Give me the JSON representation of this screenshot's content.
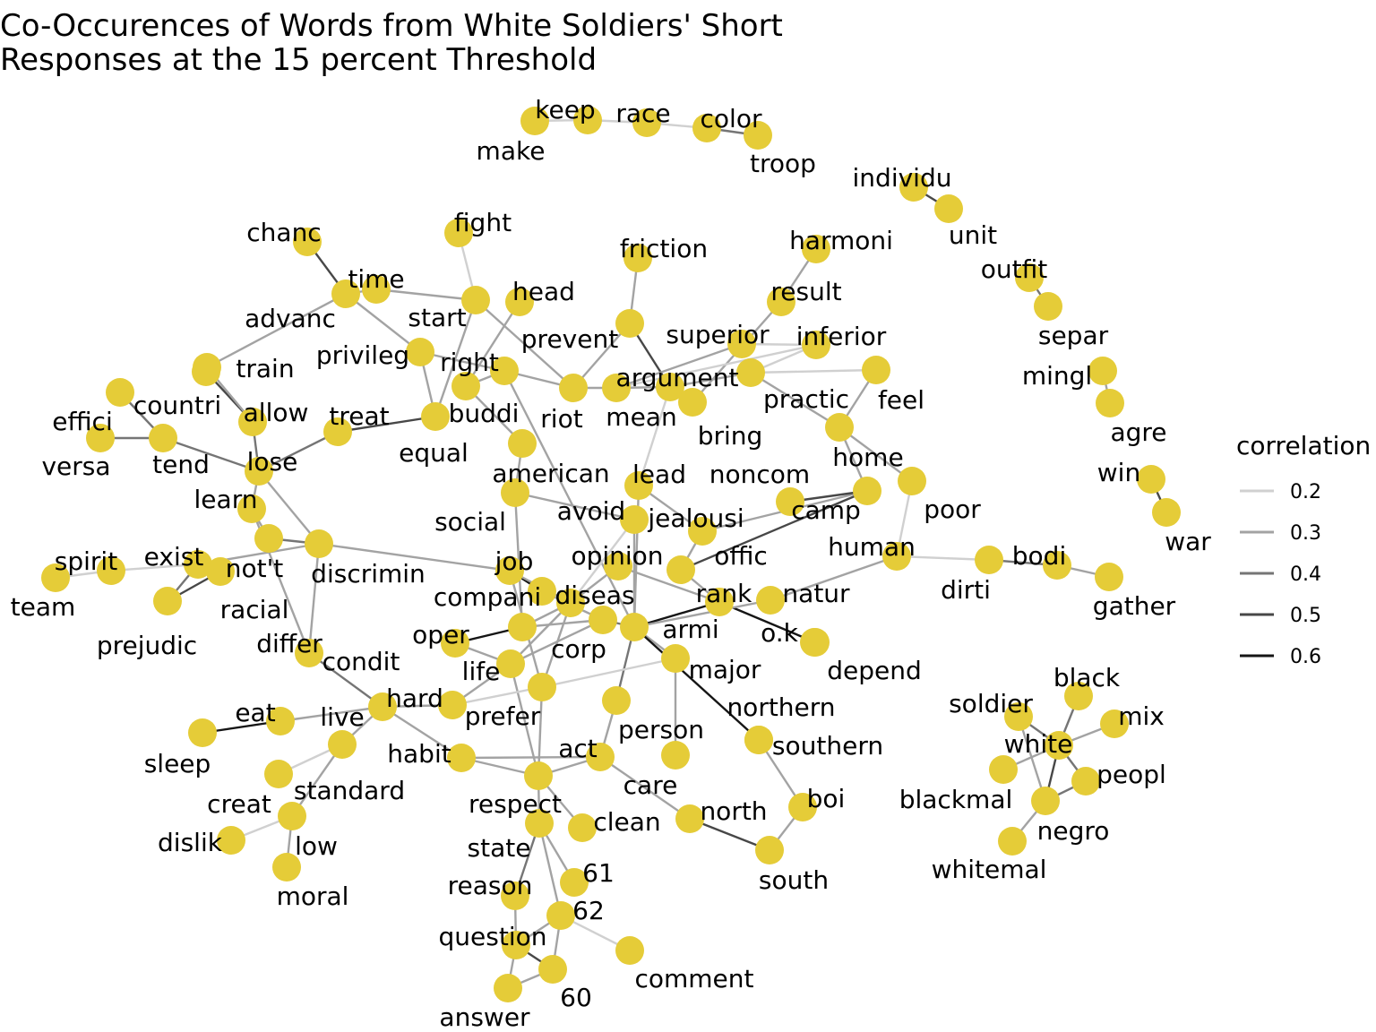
{
  "title": {
    "line1": "Co-Occurences of Words from White Soldiers' Short",
    "line2": "Responses at the 15 percent Threshold"
  },
  "colors": {
    "node": "#E5CC38",
    "text": "#000000",
    "background": "#ffffff"
  },
  "legend": {
    "title": "correlation",
    "items": [
      {
        "label": "0.2",
        "value": 0.2,
        "color": "#d0d0d0"
      },
      {
        "label": "0.3",
        "value": 0.3,
        "color": "#a3a3a3"
      },
      {
        "label": "0.4",
        "value": 0.4,
        "color": "#757575"
      },
      {
        "label": "0.5",
        "value": 0.5,
        "color": "#474747"
      },
      {
        "label": "0.6",
        "value": 0.6,
        "color": "#151515"
      }
    ]
  },
  "nodes": [
    "make",
    "keep",
    "race",
    "color",
    "troop",
    "individu",
    "unit",
    "outfit",
    "separ",
    "mingl",
    "agre",
    "win",
    "war",
    "chanc",
    "time",
    "advanc",
    "fight",
    "start",
    "head",
    "friction",
    "prevent",
    "harmoni",
    "result",
    "superior",
    "inferior",
    "feel",
    "privileg",
    "right",
    "argument",
    "practic",
    "train",
    "countri",
    "effici",
    "versa",
    "tend",
    "allow",
    "treat",
    "buddi",
    "riot",
    "mean",
    "bring",
    "equal",
    "lose",
    "american",
    "lead",
    "home",
    "noncom",
    "learn",
    "avoid",
    "jealousi",
    "camp",
    "poor",
    "social",
    "not't",
    "discrimin",
    "exist",
    "spirit",
    "team",
    "prejudic",
    "racial",
    "job",
    "opinion",
    "offic",
    "human",
    "bodi",
    "dirti",
    "gather",
    "compani",
    "diseas",
    "rank",
    "natur",
    "oper",
    "corp",
    "armi",
    "o.k",
    "depend",
    "differ",
    "condit",
    "life",
    "major",
    "northern",
    "hard",
    "prefer",
    "eat",
    "live",
    "person",
    "southern",
    "sleep",
    "habit",
    "standard",
    "act",
    "care",
    "creat",
    "respect",
    "boi",
    "north",
    "dislik",
    "low",
    "clean",
    "state",
    "south",
    "moral",
    "61",
    "reason",
    "62",
    "question",
    "comment",
    "60",
    "answer",
    "soldier",
    "black",
    "white",
    "mix",
    "blackmal",
    "peopl",
    "negro",
    "whitemal"
  ],
  "edges": [
    [
      "make",
      "keep",
      0.2
    ],
    [
      "keep",
      "race",
      0.2
    ],
    [
      "race",
      "color",
      0.2
    ],
    [
      "color",
      "troop",
      0.4
    ],
    [
      "individu",
      "unit",
      0.5
    ],
    [
      "outfit",
      "separ",
      0.4
    ],
    [
      "mingl",
      "agre",
      0.3
    ],
    [
      "win",
      "war",
      0.5
    ],
    [
      "chanc",
      "advanc",
      0.5
    ],
    [
      "time",
      "advanc",
      0.3
    ],
    [
      "time",
      "start",
      0.3
    ],
    [
      "fight",
      "start",
      0.2
    ],
    [
      "advanc",
      "privileg",
      0.3
    ],
    [
      "advanc",
      "train",
      0.3
    ],
    [
      "start",
      "riot",
      0.3
    ],
    [
      "start",
      "equal",
      0.3
    ],
    [
      "head",
      "buddi",
      0.3
    ],
    [
      "friction",
      "prevent",
      0.3
    ],
    [
      "prevent",
      "argument",
      0.5
    ],
    [
      "prevent",
      "riot",
      0.3
    ],
    [
      "harmoni",
      "result",
      0.3
    ],
    [
      "result",
      "bring",
      0.3
    ],
    [
      "superior",
      "inferior",
      0.2
    ],
    [
      "superior",
      "mean",
      0.3
    ],
    [
      "inferior",
      "mean",
      0.2
    ],
    [
      "feel",
      "practic",
      0.2
    ],
    [
      "feel",
      "home",
      0.3
    ],
    [
      "privileg",
      "right",
      0.3
    ],
    [
      "privileg",
      "equal",
      0.3
    ],
    [
      "right",
      "buddi",
      0.3
    ],
    [
      "right",
      "riot",
      0.3
    ],
    [
      "riot",
      "mean",
      0.3
    ],
    [
      "mean",
      "argument",
      0.3
    ],
    [
      "argument",
      "practic",
      0.3
    ],
    [
      "argument",
      "lead",
      0.2
    ],
    [
      "argument",
      "bring",
      0.3
    ],
    [
      "practic",
      "inferior",
      0.2
    ],
    [
      "practic",
      "home",
      0.3
    ],
    [
      "right",
      "armi",
      0.3
    ],
    [
      "countri",
      "allow",
      0.5
    ],
    [
      "effici",
      "tend",
      0.4
    ],
    [
      "versa",
      "tend",
      0.4
    ],
    [
      "tend",
      "lose",
      0.4
    ],
    [
      "train",
      "allow",
      0.3
    ],
    [
      "allow",
      "lose",
      0.4
    ],
    [
      "treat",
      "equal",
      0.5
    ],
    [
      "treat",
      "lose",
      0.4
    ],
    [
      "buddi",
      "american",
      0.3
    ],
    [
      "american",
      "social",
      0.3
    ],
    [
      "lose",
      "learn",
      0.3
    ],
    [
      "lose",
      "discrimin",
      0.3
    ],
    [
      "learn",
      "not't",
      0.3
    ],
    [
      "learn",
      "differ",
      0.3
    ],
    [
      "not't",
      "discrimin",
      0.4
    ],
    [
      "exist",
      "racial",
      0.3
    ],
    [
      "exist",
      "discrimin",
      0.3
    ],
    [
      "spirit",
      "exist",
      0.2
    ],
    [
      "spirit",
      "team",
      0.2
    ],
    [
      "prejudic",
      "racial",
      0.5
    ],
    [
      "exist",
      "prejudic",
      0.4
    ],
    [
      "discrimin",
      "job",
      0.3
    ],
    [
      "social",
      "oper",
      0.3
    ],
    [
      "social",
      "avoid",
      0.3
    ],
    [
      "job",
      "diseas",
      0.6
    ],
    [
      "job",
      "compani",
      0.3
    ],
    [
      "job",
      "prefer",
      0.3
    ],
    [
      "avoid",
      "compani",
      0.2
    ],
    [
      "avoid",
      "armi",
      0.3
    ],
    [
      "lead",
      "jealousi",
      0.3
    ],
    [
      "lead",
      "armi",
      0.3
    ],
    [
      "jealousi",
      "camp",
      0.3
    ],
    [
      "noncom",
      "camp",
      0.5
    ],
    [
      "camp",
      "offic",
      0.5
    ],
    [
      "camp",
      "home",
      0.3
    ],
    [
      "home",
      "poor",
      0.3
    ],
    [
      "poor",
      "human",
      0.2
    ],
    [
      "human",
      "natur",
      0.3
    ],
    [
      "human",
      "dirti",
      0.2
    ],
    [
      "dirti",
      "bodi",
      0.4
    ],
    [
      "bodi",
      "gather",
      0.3
    ],
    [
      "opinion",
      "compani",
      0.3
    ],
    [
      "opinion",
      "rank",
      0.3
    ],
    [
      "offic",
      "jealousi",
      0.3
    ],
    [
      "offic",
      "rank",
      0.3
    ],
    [
      "compani",
      "oper",
      0.3
    ],
    [
      "compani",
      "life",
      0.3
    ],
    [
      "compani",
      "prefer",
      0.3
    ],
    [
      "diseas",
      "corp",
      0.3
    ],
    [
      "oper",
      "corp",
      0.3
    ],
    [
      "oper",
      "condit",
      0.6
    ],
    [
      "corp",
      "life",
      0.3
    ],
    [
      "corp",
      "armi",
      0.4
    ],
    [
      "armi",
      "rank",
      0.6
    ],
    [
      "rank",
      "o.k",
      0.6
    ],
    [
      "o.k",
      "depend",
      0.3
    ],
    [
      "armi",
      "natur",
      0.3
    ],
    [
      "armi",
      "major",
      0.3
    ],
    [
      "armi",
      "northern",
      0.6
    ],
    [
      "northern",
      "southern",
      0.4
    ],
    [
      "armi",
      "person",
      0.4
    ],
    [
      "major",
      "care",
      0.3
    ],
    [
      "differ",
      "live",
      0.4
    ],
    [
      "differ",
      "discrimin",
      0.3
    ],
    [
      "condit",
      "life",
      0.3
    ],
    [
      "life",
      "hard",
      0.3
    ],
    [
      "life",
      "respect",
      0.3
    ],
    [
      "hard",
      "prefer",
      0.2
    ],
    [
      "hard",
      "live",
      0.3
    ],
    [
      "eat",
      "sleep",
      0.6
    ],
    [
      "eat",
      "live",
      0.3
    ],
    [
      "live",
      "standard",
      0.3
    ],
    [
      "live",
      "habit",
      0.3
    ],
    [
      "standard",
      "creat",
      0.2
    ],
    [
      "standard",
      "low",
      0.3
    ],
    [
      "habit",
      "act",
      0.3
    ],
    [
      "habit",
      "respect",
      0.3
    ],
    [
      "act",
      "person",
      0.3
    ],
    [
      "act",
      "respect",
      0.3
    ],
    [
      "act",
      "north",
      0.3
    ],
    [
      "prefer",
      "major",
      0.2
    ],
    [
      "respect",
      "state",
      0.3
    ],
    [
      "respect",
      "prefer",
      0.3
    ],
    [
      "respect",
      "clean",
      0.3
    ],
    [
      "north",
      "south",
      0.5
    ],
    [
      "south",
      "boi",
      0.3
    ],
    [
      "boi",
      "southern",
      0.3
    ],
    [
      "dislik",
      "low",
      0.2
    ],
    [
      "low",
      "moral",
      0.3
    ],
    [
      "state",
      "reason",
      0.4
    ],
    [
      "state",
      "61",
      0.3
    ],
    [
      "state",
      "62",
      0.3
    ],
    [
      "62",
      "question",
      0.3
    ],
    [
      "62",
      "comment",
      0.2
    ],
    [
      "62",
      "60",
      0.3
    ],
    [
      "question",
      "60",
      0.5
    ],
    [
      "question",
      "answer",
      0.3
    ],
    [
      "answer",
      "60",
      0.3
    ],
    [
      "reason",
      "question",
      0.3
    ],
    [
      "soldier",
      "white",
      0.4
    ],
    [
      "black",
      "white",
      0.4
    ],
    [
      "mix",
      "white",
      0.3
    ],
    [
      "blackmal",
      "white",
      0.3
    ],
    [
      "peopl",
      "white",
      0.4
    ],
    [
      "negro",
      "white",
      0.5
    ],
    [
      "negro",
      "whitemal",
      0.3
    ],
    [
      "peopl",
      "negro",
      0.4
    ],
    [
      "soldier",
      "negro",
      0.3
    ]
  ]
}
